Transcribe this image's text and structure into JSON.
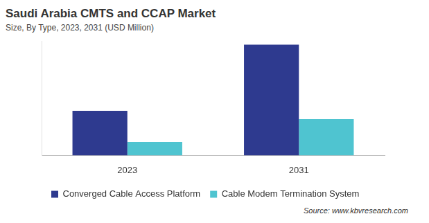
{
  "chart_data": {
    "type": "bar",
    "title": "Saudi Arabia CMTS and CCAP Market",
    "subtitle": "Size, By Type, 2023, 2031 (USD Million)",
    "source": "Source: www.kbvresearch.com",
    "categories": [
      "2023",
      "2031"
    ],
    "series": [
      {
        "name": "Converged Cable Access Platform",
        "color": "#2e3a8f",
        "values": [
          70,
          174
        ]
      },
      {
        "name": "Cable Modem Termination System",
        "color": "#4fc4d0",
        "values": [
          21,
          57
        ]
      }
    ],
    "ylim": [
      0,
      180
    ],
    "grid": false,
    "legend": "bottom-left",
    "tick_labels": "x"
  }
}
